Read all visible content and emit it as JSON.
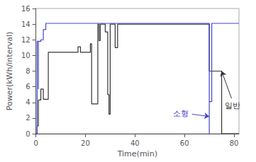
{
  "chart_data": {
    "type": "line",
    "xlabel": "Time(min)",
    "ylabel": "Power(kWh/interval)",
    "xlim": [
      0,
      82
    ],
    "ylim": [
      0,
      16
    ],
    "xticks": [
      0,
      20,
      40,
      60,
      80
    ],
    "yticks": [
      0,
      2,
      4,
      6,
      8,
      10,
      12,
      14,
      16
    ],
    "grid": false,
    "series": [
      {
        "color": "#4444cc",
        "x": [
          0,
          0.5,
          0.5,
          1,
          1,
          1,
          2,
          2,
          3,
          3,
          4,
          4,
          70,
          70,
          70,
          70,
          70,
          71,
          71,
          82
        ],
        "values": [
          0,
          0,
          11.8,
          11.8,
          5.7,
          11.8,
          11.8,
          12.0,
          12.0,
          13.3,
          13.3,
          14.1,
          14.1,
          2.2,
          0,
          2.2,
          4.1,
          4.1,
          14.1,
          14.1
        ]
      },
      {
        "color": "#333333",
        "x": [
          0,
          0.5,
          0.5,
          1,
          1,
          2,
          2,
          3,
          3,
          5,
          5,
          17,
          17,
          18,
          18,
          22,
          22,
          22.5,
          22.5,
          25,
          25,
          25.5,
          25.5,
          26,
          26,
          28,
          28,
          29,
          29,
          29.5,
          29.5,
          30,
          30,
          32,
          32,
          33,
          33,
          70,
          70,
          75,
          75,
          82
        ],
        "values": [
          0,
          0,
          1.0,
          1.0,
          4.3,
          4.3,
          5.7,
          5.7,
          4.4,
          4.4,
          10.4,
          10.4,
          11.1,
          11.1,
          10.4,
          10.4,
          11.5,
          11.5,
          3.8,
          3.8,
          14.0,
          14.0,
          11.9,
          11.9,
          14.0,
          14.0,
          13.0,
          13.0,
          5.0,
          5.0,
          2.5,
          2.5,
          14.0,
          14.0,
          11.0,
          11.0,
          14.0,
          14.0,
          8.0,
          8.0,
          0,
          0
        ]
      }
    ],
    "annotations": [
      {
        "text": "소형",
        "x": 63,
        "y": 2.5,
        "arrow_x": 70,
        "arrow_y": 2.2,
        "color": "#4444cc"
      },
      {
        "text": "일반",
        "x": 79,
        "y": 4.5,
        "arrow_x": 75,
        "arrow_y": 8.0,
        "color": "#333333"
      }
    ]
  }
}
